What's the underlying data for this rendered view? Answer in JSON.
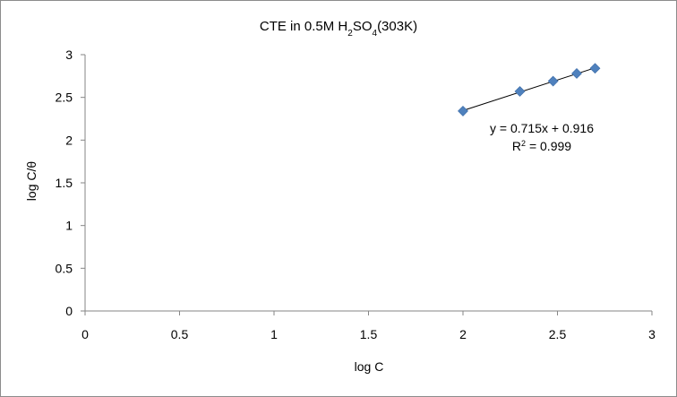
{
  "chart_data": {
    "type": "scatter",
    "title_parts": [
      "CTE in 0.5M H",
      "2",
      "SO",
      "4",
      "(303K)"
    ],
    "xlabel": "log C",
    "ylabel": "log C/θ",
    "xlim": [
      0,
      3
    ],
    "ylim": [
      0,
      3
    ],
    "x_ticks": [
      0,
      0.5,
      1,
      1.5,
      2,
      2.5,
      3
    ],
    "x_tick_labels": [
      "0",
      "0.5",
      "1",
      "1.5",
      "2",
      "2.5",
      "3"
    ],
    "y_ticks": [
      0,
      0.5,
      1,
      1.5,
      2,
      2.5,
      3
    ],
    "y_tick_labels": [
      "0",
      "0.5",
      "1",
      "1.5",
      "2",
      "2.5",
      "3"
    ],
    "grid": false,
    "legend": "none",
    "series": [
      {
        "marker": "diamond",
        "color": "#4f81bd",
        "x": [
          2.0,
          2.301,
          2.477,
          2.602,
          2.699
        ],
        "y": [
          2.34,
          2.57,
          2.69,
          2.78,
          2.84
        ]
      }
    ],
    "trendline": {
      "slope": 0.715,
      "intercept": 0.916,
      "x_range": [
        2.0,
        2.699
      ],
      "color": "#000000",
      "equation_label": "y = 0.715x + 0.916",
      "r2_prefix": "R",
      "r2_exponent": "2",
      "r2_suffix": " = 0.999"
    }
  }
}
